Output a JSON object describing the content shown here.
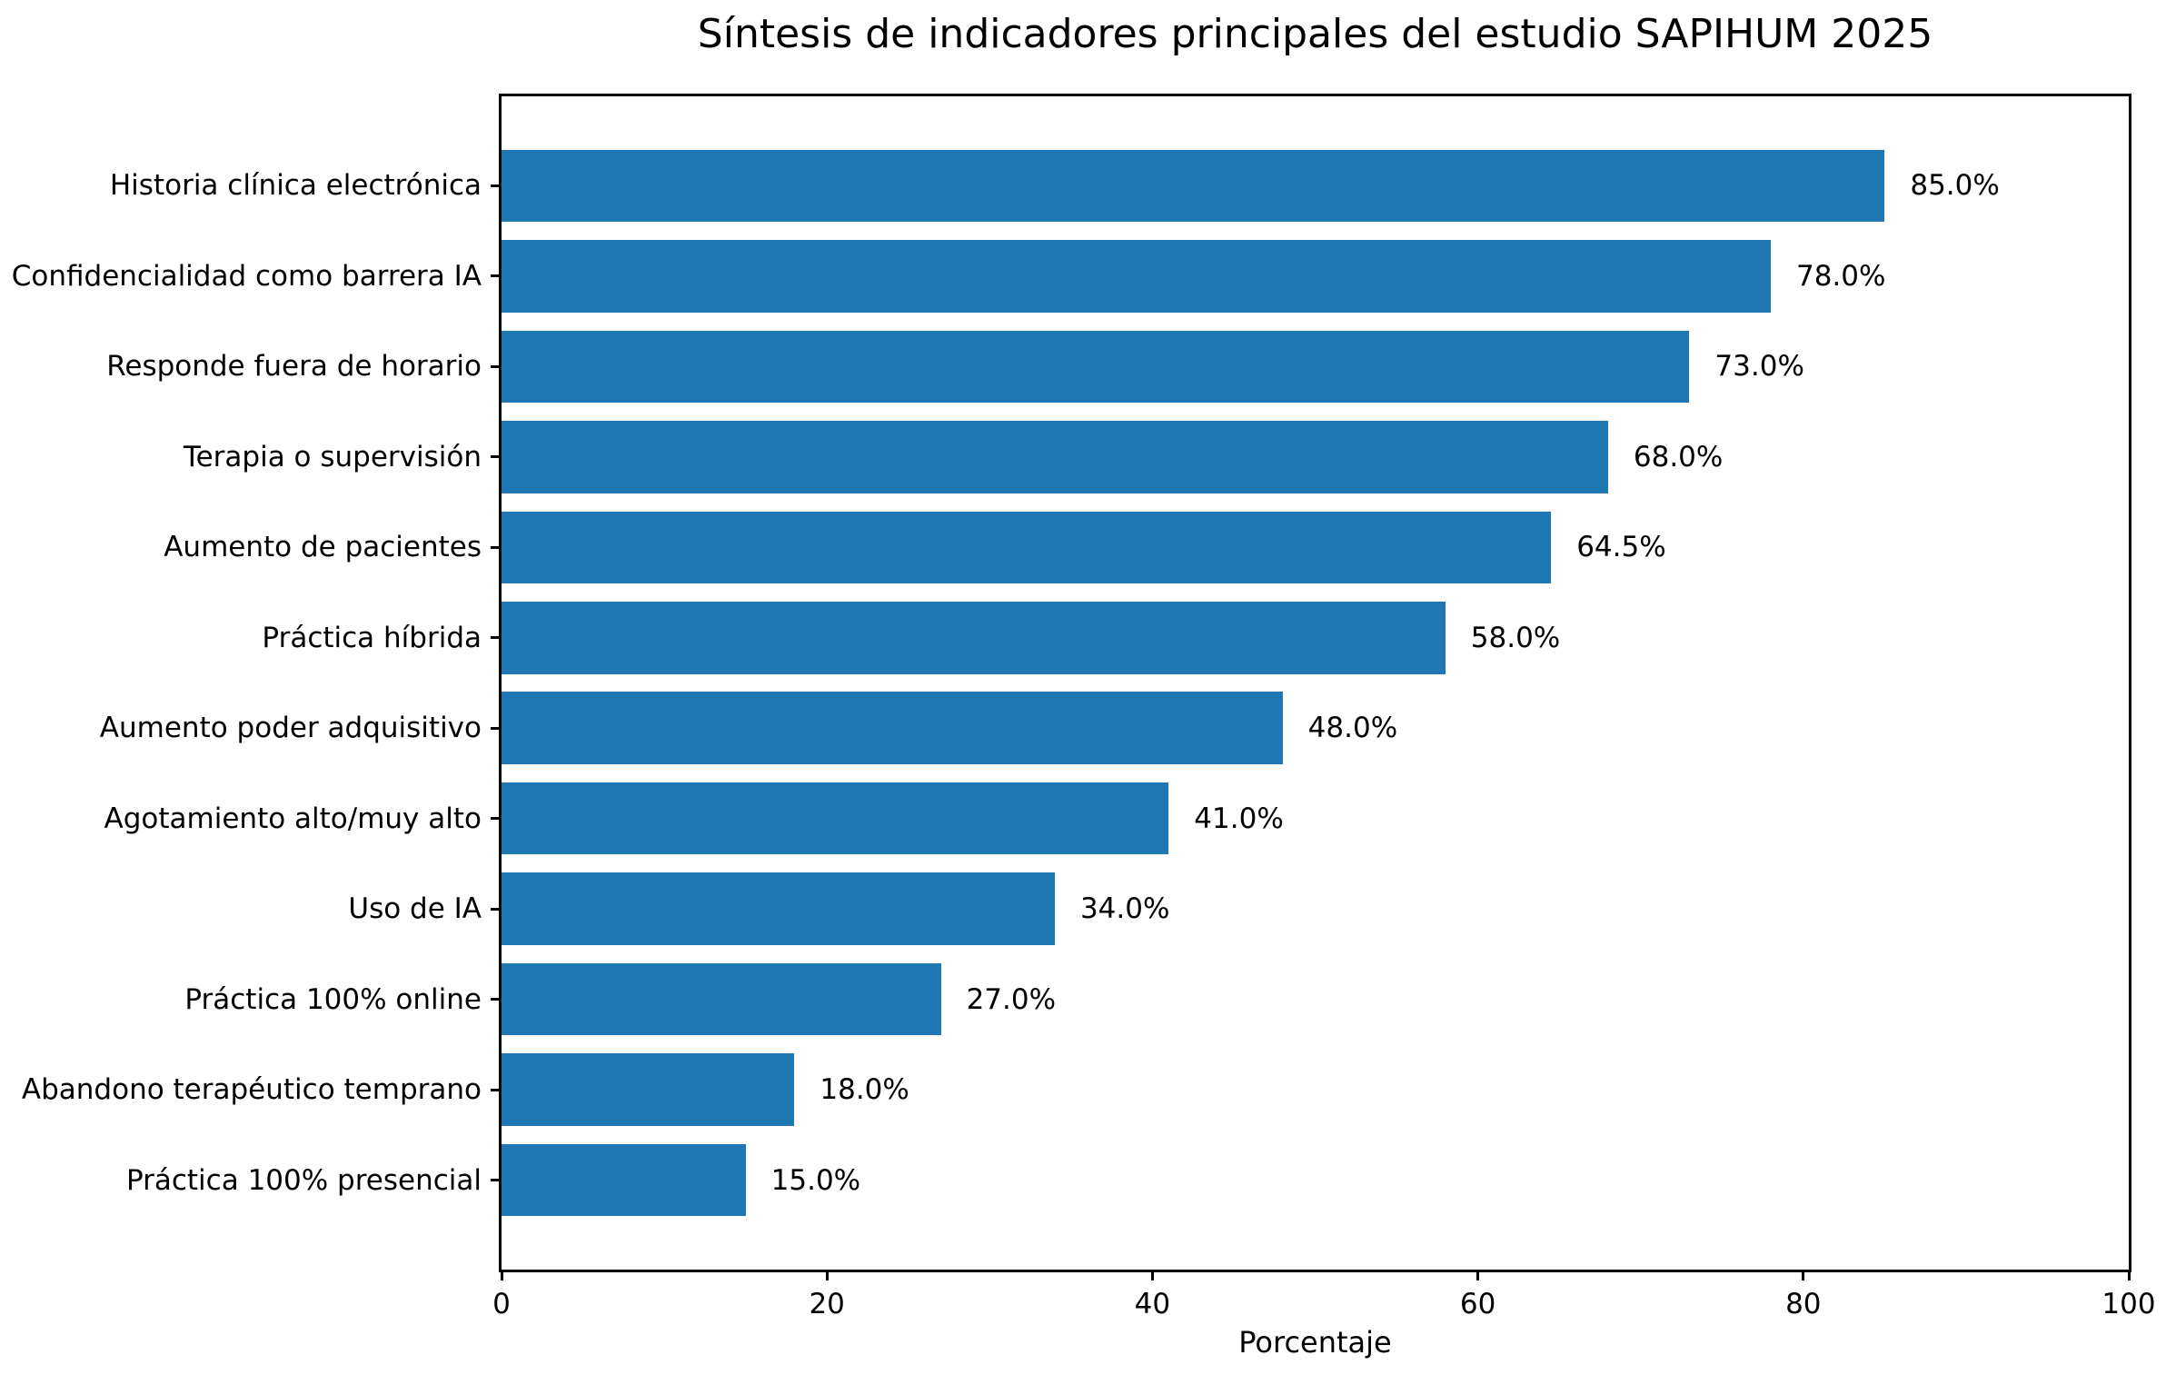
{
  "chart_data": {
    "type": "bar",
    "orientation": "horizontal",
    "title": "Síntesis de indicadores principales del estudio SAPIHUM 2025",
    "xlabel": "Porcentaje",
    "ylabel": "",
    "xlim": [
      0,
      100
    ],
    "xticks": [
      0,
      20,
      40,
      60,
      80,
      100
    ],
    "grid": false,
    "legend": null,
    "bar_color": "#1f77b4",
    "axis_color": "#000000",
    "text_color": "#000000",
    "categories": [
      "Historia clínica electrónica",
      "Confidencialidad como barrera IA",
      "Responde fuera de horario",
      "Terapia o supervisión",
      "Aumento de pacientes",
      "Práctica híbrida",
      "Aumento poder adquisitivo",
      "Agotamiento alto/muy alto",
      "Uso de IA",
      "Práctica 100% online",
      "Abandono terapéutico temprano",
      "Práctica 100% presencial"
    ],
    "values": [
      85.0,
      78.0,
      73.0,
      68.0,
      64.5,
      58.0,
      48.0,
      41.0,
      34.0,
      27.0,
      18.0,
      15.0
    ],
    "value_labels": [
      "85.0%",
      "78.0%",
      "73.0%",
      "68.0%",
      "64.5%",
      "58.0%",
      "48.0%",
      "41.0%",
      "34.0%",
      "27.0%",
      "18.0%",
      "15.0%"
    ]
  }
}
